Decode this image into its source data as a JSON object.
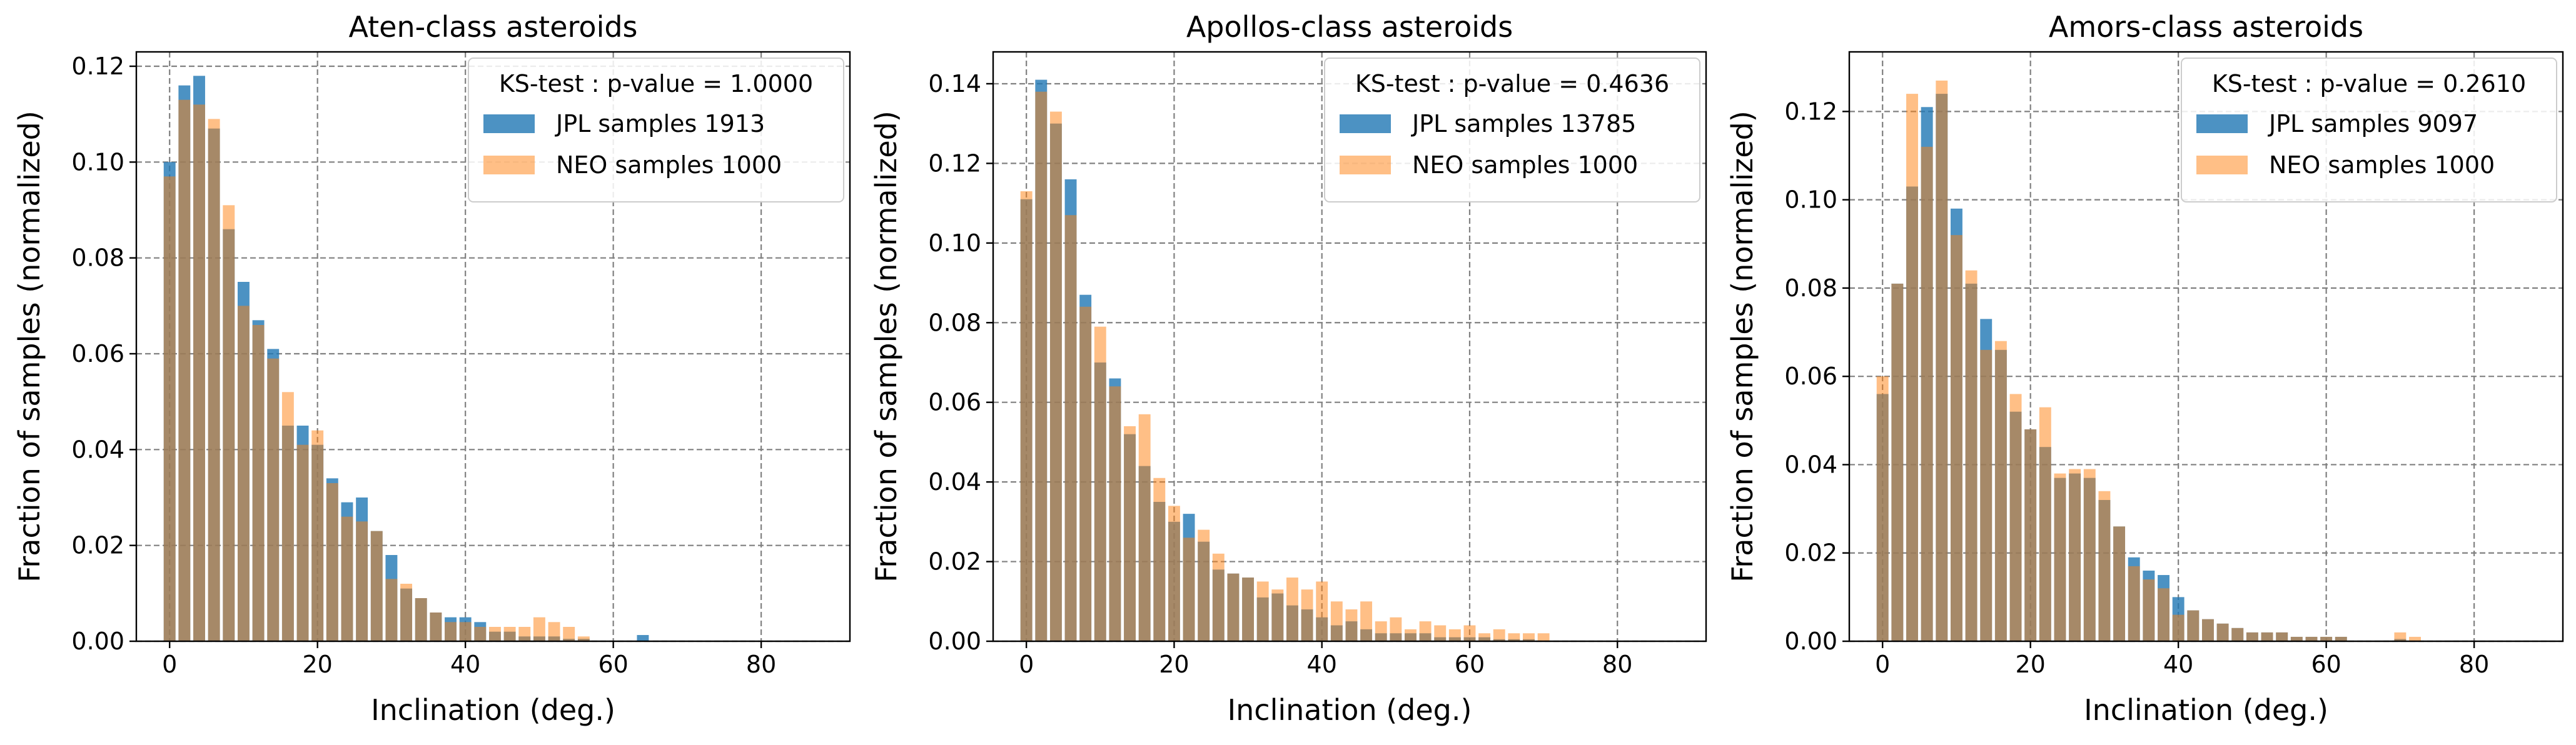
{
  "colors": {
    "jpl": "#1f77b4",
    "neo": "#ff7f0e",
    "grid": "#808080"
  },
  "chart_data": [
    {
      "type": "bar",
      "title": "Aten-class asteroids",
      "xlabel": "Inclination (deg.)",
      "ylabel": "Fraction of samples (normalized)",
      "xlim": [
        -4.5,
        92
      ],
      "ylim": [
        0,
        0.123
      ],
      "xticks": [
        "0",
        "20",
        "40",
        "60",
        "80"
      ],
      "yticks": [
        "0.00",
        "0.02",
        "0.04",
        "0.06",
        "0.08",
        "0.10",
        "0.12"
      ],
      "grid": true,
      "legend_position": "top-right",
      "legend_title": "KS-test : p-value = 1.0000",
      "x": [
        0,
        2,
        4,
        6,
        8,
        10,
        12,
        14,
        16,
        18,
        20,
        22,
        24,
        26,
        28,
        30,
        32,
        34,
        36,
        38,
        40,
        42,
        44,
        46,
        48,
        50,
        52,
        54,
        56,
        58,
        60,
        62,
        64,
        66,
        68,
        70,
        72,
        74,
        76,
        78,
        80,
        82,
        84,
        86
      ],
      "series": [
        {
          "name": "JPL samples 1913",
          "values": [
            0.1,
            0.116,
            0.118,
            0.107,
            0.086,
            0.075,
            0.067,
            0.061,
            0.045,
            0.045,
            0.041,
            0.034,
            0.029,
            0.03,
            0.023,
            0.018,
            0.011,
            0.009,
            0.006,
            0.005,
            0.005,
            0.004,
            0.002,
            0.002,
            0.001,
            0.001,
            0.001,
            0.0005,
            0.0005,
            0,
            0,
            0,
            0.0013,
            0,
            0,
            0,
            0,
            0,
            0,
            0,
            0,
            0,
            0,
            0
          ]
        },
        {
          "name": "NEO samples 1000",
          "values": [
            0.097,
            0.113,
            0.112,
            0.109,
            0.091,
            0.07,
            0.066,
            0.059,
            0.052,
            0.041,
            0.044,
            0.033,
            0.026,
            0.025,
            0.023,
            0.013,
            0.012,
            0.009,
            0.006,
            0.004,
            0.004,
            0.003,
            0.003,
            0.003,
            0.003,
            0.005,
            0.004,
            0.003,
            0.001,
            0,
            0,
            0,
            0,
            0,
            0,
            0,
            0,
            0,
            0,
            0,
            0,
            0,
            0,
            0
          ]
        }
      ]
    },
    {
      "type": "bar",
      "title": "Apollos-class asteroids",
      "xlabel": "Inclination (deg.)",
      "ylabel": "Fraction of samples (normalized)",
      "xlim": [
        -4.5,
        92
      ],
      "ylim": [
        0,
        0.148
      ],
      "xticks": [
        "0",
        "20",
        "40",
        "60",
        "80"
      ],
      "yticks": [
        "0.00",
        "0.02",
        "0.04",
        "0.06",
        "0.08",
        "0.10",
        "0.12",
        "0.14"
      ],
      "grid": true,
      "legend_position": "top-right",
      "legend_title": "KS-test : p-value = 0.4636",
      "x": [
        0,
        2,
        4,
        6,
        8,
        10,
        12,
        14,
        16,
        18,
        20,
        22,
        24,
        26,
        28,
        30,
        32,
        34,
        36,
        38,
        40,
        42,
        44,
        46,
        48,
        50,
        52,
        54,
        56,
        58,
        60,
        62,
        64,
        66,
        68,
        70,
        72,
        74,
        76,
        78,
        80,
        82,
        84,
        86
      ],
      "series": [
        {
          "name": "JPL samples 13785",
          "values": [
            0.111,
            0.141,
            0.13,
            0.116,
            0.087,
            0.07,
            0.066,
            0.052,
            0.044,
            0.035,
            0.03,
            0.032,
            0.025,
            0.018,
            0.017,
            0.016,
            0.011,
            0.012,
            0.009,
            0.008,
            0.006,
            0.004,
            0.005,
            0.003,
            0.002,
            0.002,
            0.002,
            0.002,
            0.001,
            0.001,
            0.001,
            0.001,
            0.0005,
            0.0005,
            0.0005,
            0,
            0,
            0,
            0,
            0,
            0,
            0,
            0,
            0
          ]
        },
        {
          "name": "NEO samples 1000",
          "values": [
            0.113,
            0.138,
            0.133,
            0.107,
            0.084,
            0.079,
            0.064,
            0.054,
            0.057,
            0.041,
            0.034,
            0.026,
            0.028,
            0.022,
            0.017,
            0.016,
            0.015,
            0.013,
            0.016,
            0.013,
            0.015,
            0.01,
            0.008,
            0.01,
            0.005,
            0.006,
            0.003,
            0.005,
            0.004,
            0.003,
            0.004,
            0.002,
            0.003,
            0.002,
            0.002,
            0.002,
            0,
            0,
            0,
            0,
            0,
            0,
            0,
            0
          ]
        }
      ]
    },
    {
      "type": "bar",
      "title": "Amors-class asteroids",
      "xlabel": "Inclination (deg.)",
      "ylabel": "Fraction of samples (normalized)",
      "xlim": [
        -4.5,
        92
      ],
      "ylim": [
        0,
        0.1335
      ],
      "xticks": [
        "0",
        "20",
        "40",
        "60",
        "80"
      ],
      "yticks": [
        "0.00",
        "0.02",
        "0.04",
        "0.06",
        "0.08",
        "0.10",
        "0.12"
      ],
      "grid": true,
      "legend_position": "top-right",
      "legend_title": "KS-test : p-value = 0.2610",
      "x": [
        0,
        2,
        4,
        6,
        8,
        10,
        12,
        14,
        16,
        18,
        20,
        22,
        24,
        26,
        28,
        30,
        32,
        34,
        36,
        38,
        40,
        42,
        44,
        46,
        48,
        50,
        52,
        54,
        56,
        58,
        60,
        62,
        64,
        66,
        68,
        70,
        72,
        74,
        76,
        78,
        80,
        82,
        84,
        86
      ],
      "series": [
        {
          "name": "JPL samples 9097",
          "values": [
            0.056,
            0.081,
            0.103,
            0.121,
            0.124,
            0.098,
            0.081,
            0.073,
            0.066,
            0.052,
            0.048,
            0.044,
            0.037,
            0.038,
            0.037,
            0.032,
            0.026,
            0.019,
            0.016,
            0.015,
            0.01,
            0.007,
            0.005,
            0.004,
            0.003,
            0.002,
            0.002,
            0.002,
            0.001,
            0.001,
            0.001,
            0.001,
            0,
            0,
            0,
            0.0005,
            0,
            0,
            0,
            0,
            0,
            0,
            0,
            0
          ]
        },
        {
          "name": "NEO samples 1000",
          "values": [
            0.06,
            0.081,
            0.124,
            0.112,
            0.127,
            0.092,
            0.084,
            0.066,
            0.068,
            0.056,
            0.048,
            0.053,
            0.038,
            0.039,
            0.039,
            0.034,
            0.026,
            0.017,
            0.014,
            0.012,
            0.006,
            0.007,
            0.005,
            0.004,
            0.003,
            0.002,
            0.002,
            0.002,
            0.001,
            0.001,
            0.001,
            0.001,
            0,
            0,
            0,
            0.002,
            0.001,
            0,
            0,
            0,
            0,
            0,
            0,
            0
          ]
        }
      ]
    }
  ]
}
